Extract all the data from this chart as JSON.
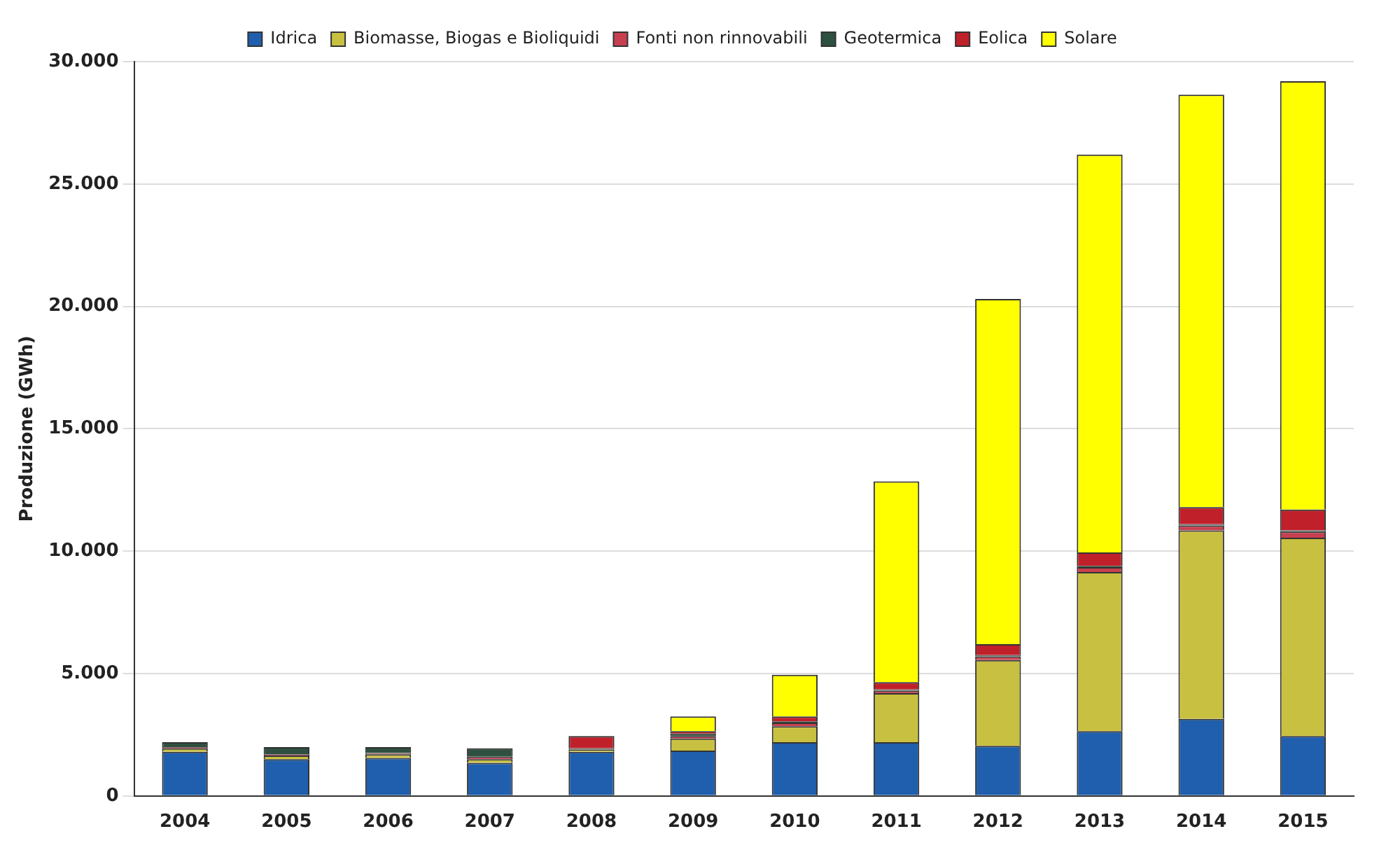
{
  "chart_data": {
    "type": "bar",
    "stacked": true,
    "ylabel": "Produzione (GWh)",
    "categories": [
      "2004",
      "2005",
      "2006",
      "2007",
      "2008",
      "2009",
      "2010",
      "2011",
      "2012",
      "2013",
      "2014",
      "2015"
    ],
    "series": [
      {
        "name": "Idrica",
        "color": "#1f5fad",
        "values": [
          1800,
          1500,
          1550,
          1350,
          1800,
          1850,
          2200,
          2200,
          2050,
          2650,
          3150,
          2450
        ]
      },
      {
        "name": "Biomasse, Biogas e Bioliquidi",
        "color": "#c8c040",
        "values": [
          150,
          150,
          150,
          150,
          100,
          500,
          650,
          2000,
          3500,
          6500,
          7700,
          8100
        ]
      },
      {
        "name": "Fonti non rinnovabili",
        "color": "#c84050",
        "values": [
          50,
          50,
          50,
          100,
          0,
          100,
          150,
          100,
          150,
          200,
          200,
          250
        ]
      },
      {
        "name": "Geotermica",
        "color": "#2e5040",
        "values": [
          200,
          300,
          250,
          350,
          50,
          100,
          50,
          50,
          50,
          50,
          50,
          50
        ]
      },
      {
        "name": "Eolica",
        "color": "#c0202a",
        "values": [
          0,
          0,
          0,
          0,
          500,
          100,
          200,
          300,
          450,
          550,
          700,
          850
        ]
      },
      {
        "name": "Solare",
        "color": "#ffff00",
        "values": [
          0,
          0,
          0,
          0,
          0,
          600,
          1700,
          8200,
          14100,
          16250,
          16850,
          17500
        ]
      }
    ],
    "ylim": [
      0,
      30000
    ],
    "yticks": [
      {
        "value": 0,
        "label": "0"
      },
      {
        "value": 5000,
        "label": "5.000"
      },
      {
        "value": 10000,
        "label": "10.000"
      },
      {
        "value": 15000,
        "label": "15.000"
      },
      {
        "value": 20000,
        "label": "20.000"
      },
      {
        "value": 25000,
        "label": "25.000"
      },
      {
        "value": 30000,
        "label": "30.000"
      }
    ],
    "grid": "y",
    "legend": "top"
  }
}
